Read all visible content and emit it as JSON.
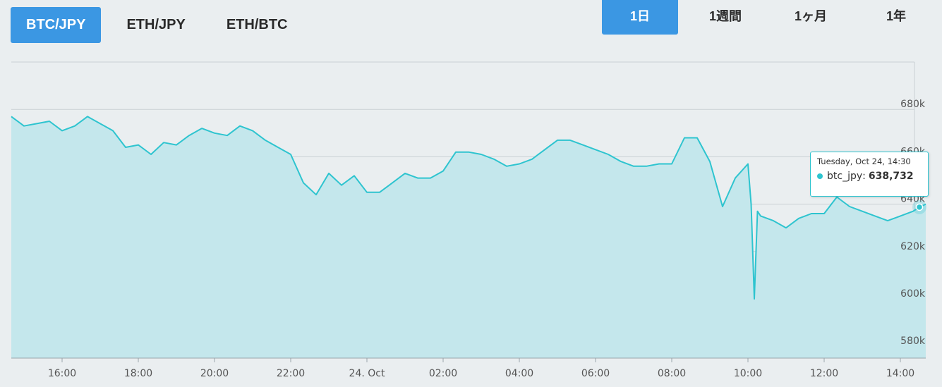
{
  "pair_tabs": [
    "BTC/JPY",
    "ETH/JPY",
    "ETH/BTC"
  ],
  "range_tabs": [
    "1日",
    "1週間",
    "1ヶ月",
    "1年"
  ],
  "active_pair": "BTC/JPY",
  "active_range": "1日",
  "colors": {
    "accent": "#3b97e3",
    "line": "#2ec4cf",
    "fill": "#c4e7ec",
    "background": "#eaeef0"
  },
  "tooltip": {
    "date": "Tuesday, Oct 24, 14:30",
    "series": "btc_jpy",
    "value": "638,732"
  },
  "chart_data": {
    "type": "area",
    "title": "",
    "xlabel": "",
    "ylabel": "",
    "ylim": [
      575000,
      700000
    ],
    "xlim": [
      "2017-10-23 14:40",
      "2017-10-24 14:40"
    ],
    "grid": true,
    "y_ticks": [
      580000,
      600000,
      620000,
      640000,
      660000,
      680000
    ],
    "y_tick_labels": [
      "580k",
      "600k",
      "620k",
      "640k",
      "660k",
      "680k"
    ],
    "x_ticks": [
      "2017-10-23 16:00",
      "2017-10-23 18:00",
      "2017-10-23 20:00",
      "2017-10-23 22:00",
      "2017-10-24 00:00",
      "2017-10-24 02:00",
      "2017-10-24 04:00",
      "2017-10-24 06:00",
      "2017-10-24 08:00",
      "2017-10-24 10:00",
      "2017-10-24 12:00",
      "2017-10-24 14:00"
    ],
    "x_tick_labels": [
      "16:00",
      "18:00",
      "20:00",
      "22:00",
      "24. Oct",
      "02:00",
      "04:00",
      "06:00",
      "08:00",
      "10:00",
      "12:00",
      "14:00"
    ],
    "series": [
      {
        "name": "btc_jpy",
        "x": [
          "2017-10-23 14:40",
          "2017-10-23 15:00",
          "2017-10-23 15:20",
          "2017-10-23 15:40",
          "2017-10-23 16:00",
          "2017-10-23 16:20",
          "2017-10-23 16:40",
          "2017-10-23 17:00",
          "2017-10-23 17:20",
          "2017-10-23 17:40",
          "2017-10-23 18:00",
          "2017-10-23 18:20",
          "2017-10-23 18:40",
          "2017-10-23 19:00",
          "2017-10-23 19:20",
          "2017-10-23 19:40",
          "2017-10-23 20:00",
          "2017-10-23 20:20",
          "2017-10-23 20:40",
          "2017-10-23 21:00",
          "2017-10-23 21:20",
          "2017-10-23 21:40",
          "2017-10-23 22:00",
          "2017-10-23 22:20",
          "2017-10-23 22:40",
          "2017-10-23 23:00",
          "2017-10-23 23:20",
          "2017-10-23 23:40",
          "2017-10-24 00:00",
          "2017-10-24 00:20",
          "2017-10-24 00:40",
          "2017-10-24 01:00",
          "2017-10-24 01:20",
          "2017-10-24 01:40",
          "2017-10-24 02:00",
          "2017-10-24 02:20",
          "2017-10-24 02:40",
          "2017-10-24 03:00",
          "2017-10-24 03:20",
          "2017-10-24 03:40",
          "2017-10-24 04:00",
          "2017-10-24 04:20",
          "2017-10-24 04:40",
          "2017-10-24 05:00",
          "2017-10-24 05:20",
          "2017-10-24 05:40",
          "2017-10-24 06:00",
          "2017-10-24 06:20",
          "2017-10-24 06:40",
          "2017-10-24 07:00",
          "2017-10-24 07:20",
          "2017-10-24 07:40",
          "2017-10-24 08:00",
          "2017-10-24 08:20",
          "2017-10-24 08:40",
          "2017-10-24 09:00",
          "2017-10-24 09:20",
          "2017-10-24 09:40",
          "2017-10-24 10:00",
          "2017-10-24 10:05",
          "2017-10-24 10:10",
          "2017-10-24 10:15",
          "2017-10-24 10:20",
          "2017-10-24 10:40",
          "2017-10-24 11:00",
          "2017-10-24 11:20",
          "2017-10-24 11:40",
          "2017-10-24 12:00",
          "2017-10-24 12:20",
          "2017-10-24 12:40",
          "2017-10-24 13:00",
          "2017-10-24 13:20",
          "2017-10-24 13:40",
          "2017-10-24 14:00",
          "2017-10-24 14:20",
          "2017-10-24 14:30",
          "2017-10-24 14:40"
        ],
        "y": [
          677000,
          673000,
          674000,
          675000,
          671000,
          673000,
          677000,
          674000,
          671000,
          664000,
          665000,
          661000,
          666000,
          665000,
          669000,
          672000,
          670000,
          669000,
          673000,
          671000,
          667000,
          664000,
          661000,
          649000,
          644000,
          653000,
          648000,
          652000,
          645000,
          645000,
          649000,
          653000,
          651000,
          651000,
          654000,
          662000,
          662000,
          661000,
          659000,
          656000,
          657000,
          659000,
          663000,
          667000,
          667000,
          665000,
          663000,
          661000,
          658000,
          656000,
          656000,
          657000,
          657000,
          668000,
          668000,
          658000,
          639000,
          651000,
          657000,
          640000,
          600000,
          637000,
          635000,
          633000,
          630000,
          634000,
          636000,
          636000,
          643000,
          639000,
          637000,
          635000,
          633000,
          635000,
          637000,
          638732,
          640000
        ]
      }
    ],
    "legend": "none"
  }
}
